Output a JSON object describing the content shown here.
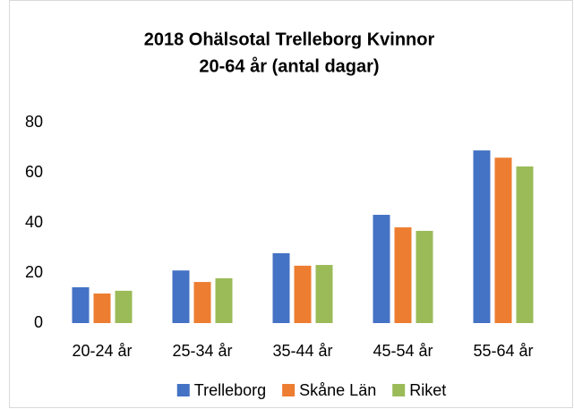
{
  "chart_data": {
    "type": "bar",
    "title": [
      "2018 Ohälsotal Trelleborg Kvinnor",
      "20-64 år (antal dagar)"
    ],
    "categories": [
      "20-24 år",
      "25-34 år",
      "35-44 år",
      "45-54 år",
      "55-64 år"
    ],
    "series": [
      {
        "name": "Trelleborg",
        "color": "#4472c4",
        "values": [
          14.3,
          21,
          27.9,
          43.2,
          68.9
        ]
      },
      {
        "name": "Skåne Län",
        "color": "#ed7d31",
        "values": [
          11.8,
          16.4,
          22.9,
          38.2,
          66
        ]
      },
      {
        "name": "Riket",
        "color": "#9bbb59",
        "values": [
          12.9,
          17.9,
          23.2,
          36.8,
          62.5
        ]
      }
    ],
    "ylim": [
      0,
      80
    ],
    "yticks": [
      0,
      20,
      40,
      60,
      80
    ],
    "grid": false,
    "legend": "bottom"
  }
}
